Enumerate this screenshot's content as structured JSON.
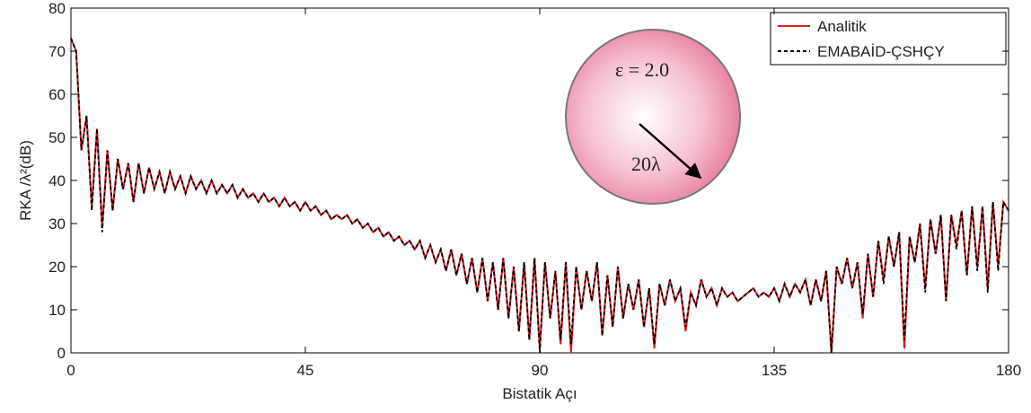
{
  "chart_data": {
    "type": "line",
    "xlabel": "Bistatik Açı",
    "ylabel": "RKA /λ²(dB)",
    "xlim": [
      0,
      180
    ],
    "xticks": [
      0,
      45,
      90,
      135,
      180
    ],
    "ylim": [
      0,
      80
    ],
    "yticks": [
      0,
      10,
      20,
      30,
      40,
      50,
      60,
      70,
      80
    ],
    "grid": false,
    "legend": "upper right",
    "annotations": [
      "ε = 2.0",
      "20λ"
    ],
    "x": [
      0,
      1,
      2,
      3,
      4,
      5,
      6,
      7,
      8,
      9,
      10,
      11,
      12,
      13,
      14,
      15,
      16,
      17,
      18,
      19,
      20,
      21,
      22,
      23,
      24,
      25,
      26,
      27,
      28,
      29,
      30,
      31,
      32,
      33,
      34,
      35,
      36,
      37,
      38,
      39,
      40,
      41,
      42,
      43,
      44,
      45,
      46,
      47,
      48,
      49,
      50,
      51,
      52,
      53,
      54,
      55,
      56,
      57,
      58,
      59,
      60,
      61,
      62,
      63,
      64,
      65,
      66,
      67,
      68,
      69,
      70,
      71,
      72,
      73,
      74,
      75,
      76,
      77,
      78,
      79,
      80,
      81,
      82,
      83,
      84,
      85,
      86,
      87,
      88,
      89,
      90,
      91,
      92,
      93,
      94,
      95,
      96,
      97,
      98,
      99,
      100,
      101,
      102,
      103,
      104,
      105,
      106,
      107,
      108,
      109,
      110,
      111,
      112,
      113,
      114,
      115,
      116,
      117,
      118,
      119,
      120,
      121,
      122,
      123,
      124,
      125,
      126,
      127,
      128,
      129,
      130,
      131,
      132,
      133,
      134,
      135,
      136,
      137,
      138,
      139,
      140,
      141,
      142,
      143,
      144,
      145,
      146,
      147,
      148,
      149,
      150,
      151,
      152,
      153,
      154,
      155,
      156,
      157,
      158,
      159,
      160,
      161,
      162,
      163,
      164,
      165,
      166,
      167,
      168,
      169,
      170,
      171,
      172,
      173,
      174,
      175,
      176,
      177,
      178,
      179,
      180
    ],
    "series": [
      {
        "name": "Analitik",
        "color": "#e31a1c",
        "linestyle": "solid",
        "values": [
          73,
          70,
          47,
          55,
          34,
          52,
          29,
          47,
          33,
          45,
          38,
          44,
          35,
          44,
          37,
          43,
          38,
          42,
          37,
          42,
          38,
          41,
          37,
          41,
          38,
          40,
          37,
          40,
          37,
          39,
          37,
          39,
          36,
          38,
          36,
          37,
          35,
          37,
          35,
          36,
          34,
          36,
          34,
          35,
          33,
          35,
          33,
          34,
          32,
          33,
          31,
          32,
          31,
          32,
          30,
          31,
          29,
          30,
          28,
          29,
          27,
          28,
          26,
          27,
          25,
          26,
          24,
          26,
          22,
          25,
          21,
          24,
          19,
          24,
          18,
          23,
          16,
          22,
          14,
          22,
          12,
          21,
          10,
          22,
          8,
          20,
          5,
          21,
          3,
          22,
          1,
          21,
          8,
          19,
          2,
          21,
          0,
          20,
          10,
          19,
          12,
          21,
          4,
          18,
          6,
          20,
          8,
          16,
          10,
          17,
          6,
          15,
          1,
          16,
          11,
          17,
          12,
          15,
          5,
          14,
          11,
          17,
          13,
          15,
          11,
          15,
          13,
          14,
          12,
          13,
          14,
          15,
          13,
          14,
          13,
          15,
          12,
          16,
          13,
          16,
          14,
          17,
          11,
          17,
          12,
          19,
          0,
          20,
          16,
          22,
          15,
          21,
          8,
          23,
          13,
          26,
          17,
          27,
          20,
          28,
          1,
          27,
          21,
          30,
          15,
          31,
          23,
          32,
          12,
          32,
          25,
          33,
          18,
          34,
          20,
          34,
          15,
          35,
          20,
          35,
          33
        ]
      },
      {
        "name": "EMABAİD-ÇSHÇY",
        "color": "#000000",
        "linestyle": "dashed",
        "values": [
          73,
          70,
          47,
          55,
          33,
          52,
          28,
          47,
          33,
          45,
          38,
          44,
          35,
          44,
          37,
          43,
          38,
          42,
          37,
          42,
          38,
          41,
          37,
          41,
          38,
          40,
          37,
          40,
          37,
          39,
          37,
          39,
          36,
          38,
          36,
          37,
          35,
          37,
          35,
          36,
          34,
          36,
          34,
          35,
          33,
          35,
          33,
          34,
          32,
          33,
          31,
          32,
          31,
          32,
          30,
          31,
          29,
          30,
          28,
          29,
          27,
          28,
          26,
          27,
          25,
          26,
          24,
          26,
          22,
          25,
          21,
          24,
          19,
          24,
          18,
          23,
          16,
          22,
          14,
          22,
          12,
          21,
          10,
          22,
          8,
          20,
          5,
          21,
          3,
          22,
          0,
          21,
          8,
          19,
          3,
          21,
          2,
          20,
          10,
          19,
          12,
          21,
          4,
          18,
          6,
          20,
          8,
          16,
          10,
          17,
          6,
          15,
          2,
          16,
          11,
          17,
          12,
          15,
          6,
          14,
          11,
          17,
          13,
          15,
          11,
          15,
          13,
          14,
          12,
          13,
          14,
          15,
          13,
          14,
          13,
          15,
          12,
          16,
          13,
          16,
          14,
          17,
          11,
          17,
          12,
          19,
          0,
          20,
          16,
          22,
          15,
          21,
          9,
          23,
          13,
          26,
          16,
          27,
          20,
          28,
          3,
          27,
          21,
          30,
          14,
          31,
          23,
          32,
          12,
          32,
          24,
          33,
          18,
          34,
          19,
          34,
          14,
          35,
          19,
          35,
          33
        ]
      }
    ]
  }
}
